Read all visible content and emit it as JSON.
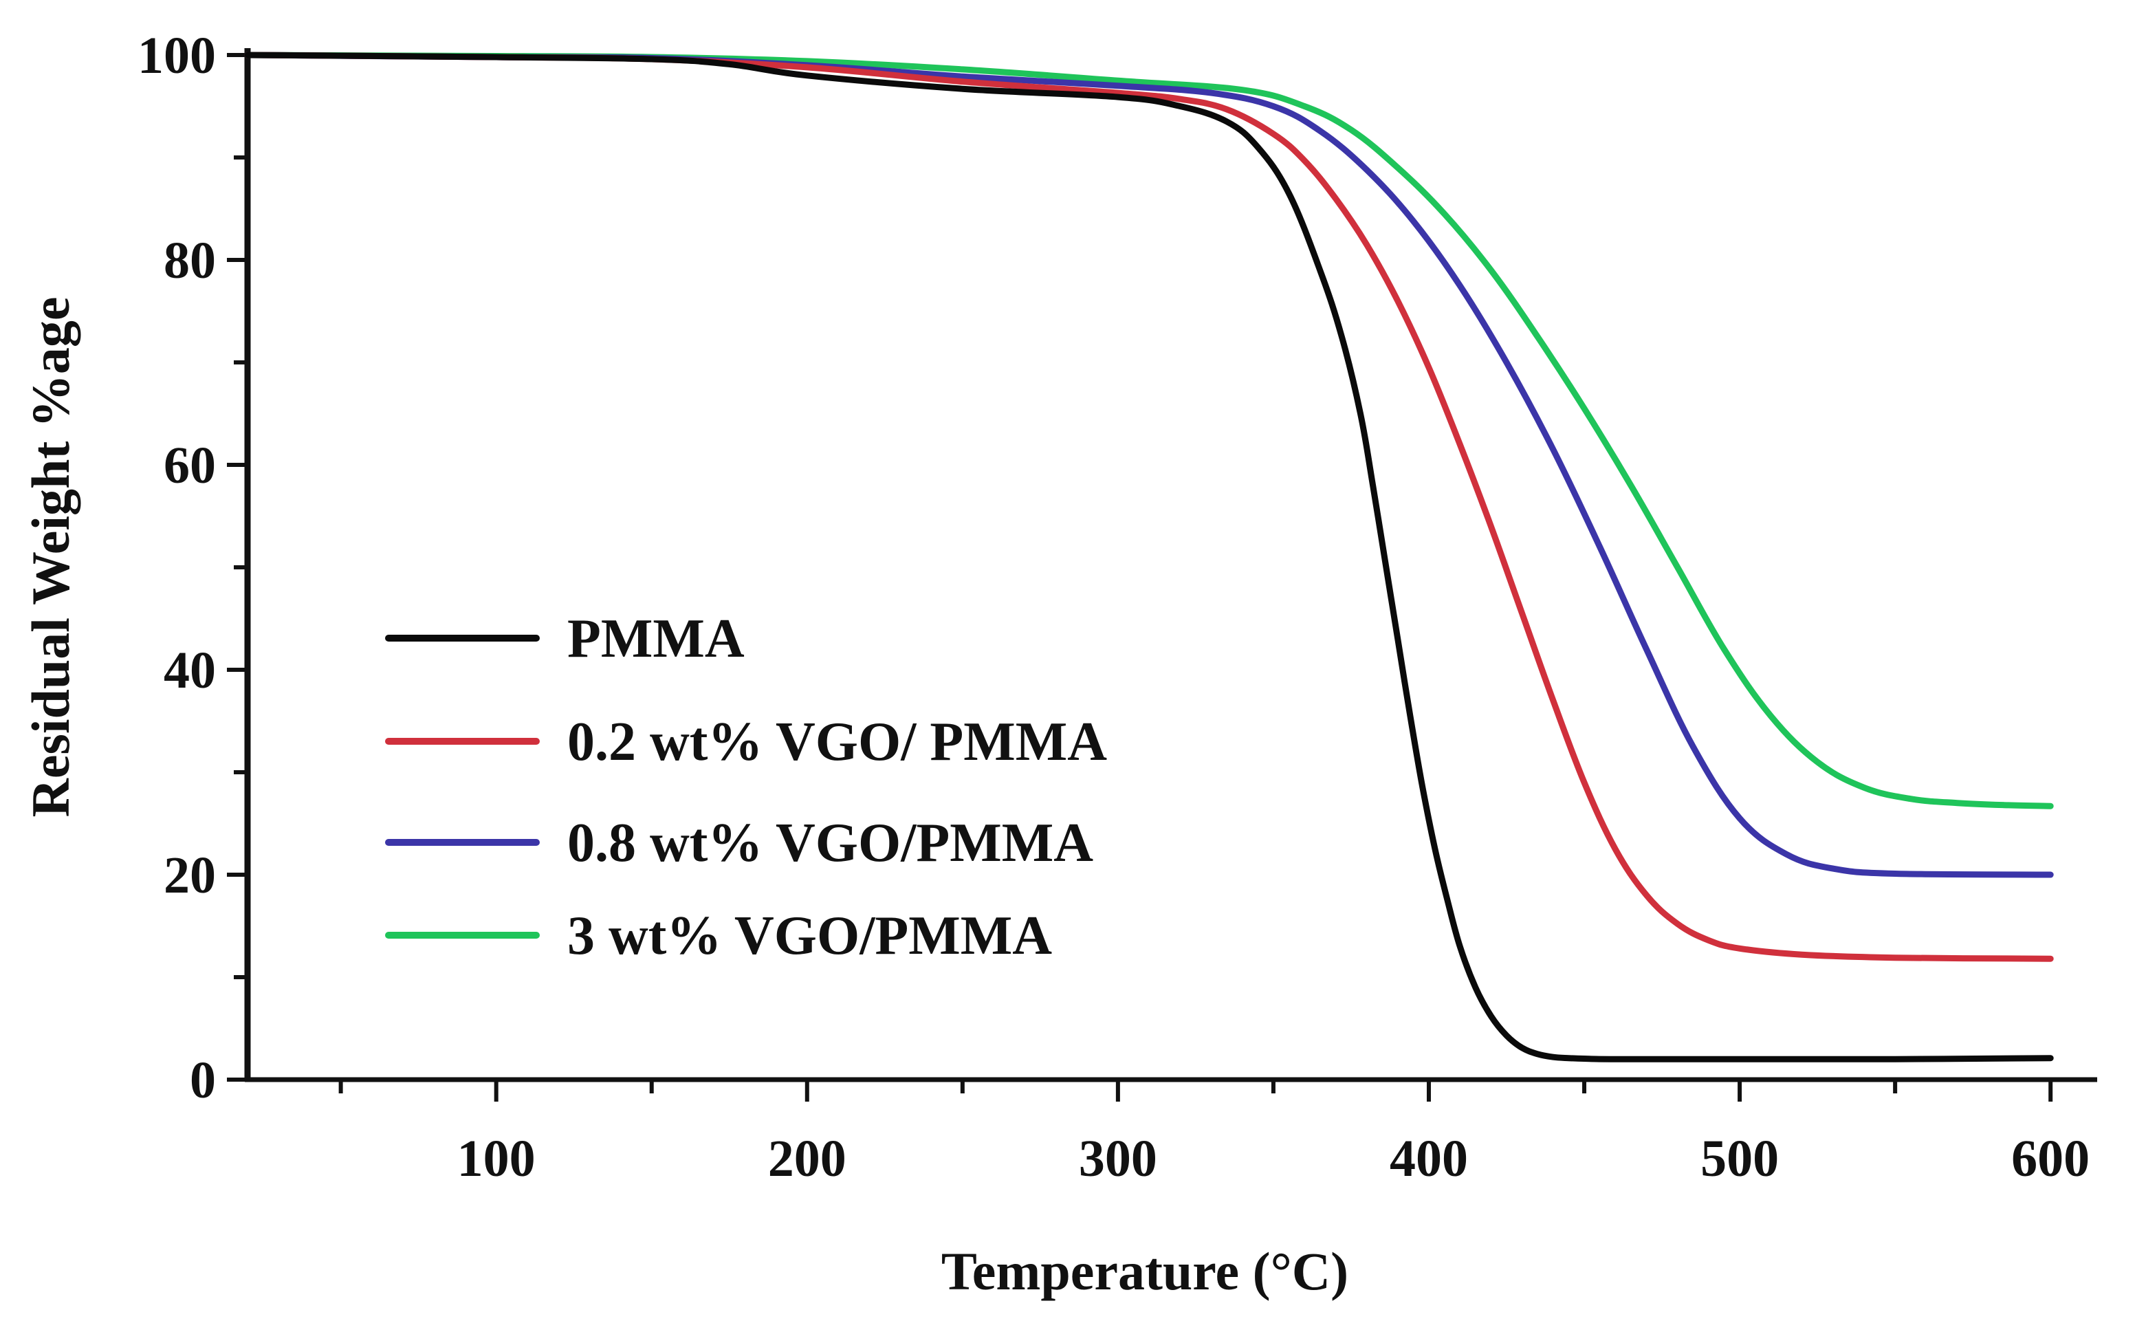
{
  "chart_data": {
    "type": "line",
    "title": "",
    "xlabel": "Temperature (°C)",
    "ylabel": "Residual Weight %age",
    "xlim": [
      20,
      615
    ],
    "ylim": [
      0,
      100
    ],
    "x_ticks": [
      100,
      200,
      300,
      400,
      500,
      600
    ],
    "x_tick_labels": [
      "100",
      "200",
      "300",
      "400",
      "500",
      "600"
    ],
    "y_ticks": [
      0,
      20,
      40,
      60,
      80,
      100
    ],
    "y_tick_labels": [
      "0",
      "20",
      "40",
      "60",
      "80",
      "100"
    ],
    "grid": false,
    "legend_position": "lower-left",
    "series": [
      {
        "name": "PMMA",
        "color": "#0a0a0a",
        "x": [
          20,
          100,
          150,
          175,
          200,
          250,
          300,
          320,
          335,
          345,
          355,
          365,
          372,
          378,
          382,
          386,
          390,
          394,
          398,
          402,
          406,
          410,
          415,
          420,
          425,
          430,
          435,
          440,
          445,
          450,
          460,
          500,
          550,
          600
        ],
        "y": [
          100,
          99.8,
          99.6,
          99.1,
          98.0,
          96.7,
          95.9,
          95.0,
          93.5,
          91.0,
          86.5,
          79.0,
          72.5,
          65.0,
          58.0,
          50.5,
          43.0,
          35.5,
          28.5,
          22.5,
          17.5,
          13.0,
          9.0,
          6.2,
          4.3,
          3.1,
          2.5,
          2.2,
          2.1,
          2.05,
          2.0,
          2.0,
          2.0,
          2.1
        ]
      },
      {
        "name": "0.2 wt% VGO/ PMMA",
        "color": "#d0303c",
        "x": [
          20,
          100,
          150,
          200,
          250,
          300,
          320,
          335,
          350,
          360,
          370,
          380,
          390,
          400,
          410,
          420,
          430,
          440,
          450,
          460,
          470,
          480,
          490,
          500,
          520,
          550,
          600
        ],
        "y": [
          100,
          99.8,
          99.6,
          98.8,
          97.4,
          96.3,
          95.7,
          94.7,
          92.3,
          89.7,
          86.0,
          81.5,
          76.0,
          69.5,
          62.0,
          54.0,
          45.5,
          37.0,
          29.0,
          22.5,
          18.0,
          15.2,
          13.6,
          12.8,
          12.2,
          11.9,
          11.8
        ]
      },
      {
        "name": "0.8 wt% VGO/PMMA",
        "color": "#3b35a8",
        "x": [
          20,
          100,
          150,
          200,
          250,
          300,
          330,
          350,
          365,
          380,
          395,
          410,
          425,
          440,
          455,
          470,
          485,
          500,
          515,
          530,
          550,
          600
        ],
        "y": [
          100,
          99.8,
          99.7,
          99.0,
          97.9,
          97.0,
          96.3,
          95.0,
          92.6,
          88.8,
          83.8,
          77.5,
          70.0,
          61.5,
          52.0,
          42.0,
          32.5,
          25.5,
          22.0,
          20.6,
          20.1,
          20.0
        ]
      },
      {
        "name": "3 wt% VGO/PMMA",
        "color": "#1fc45a",
        "x": [
          20,
          100,
          150,
          200,
          250,
          300,
          340,
          360,
          375,
          390,
          405,
          420,
          435,
          450,
          465,
          480,
          495,
          510,
          525,
          540,
          555,
          570,
          585,
          600
        ],
        "y": [
          100,
          99.9,
          99.8,
          99.4,
          98.6,
          97.5,
          96.6,
          95.0,
          92.7,
          89.0,
          84.5,
          79.0,
          72.5,
          65.5,
          58.0,
          50.0,
          42.0,
          35.5,
          31.0,
          28.5,
          27.4,
          27.0,
          26.8,
          26.7
        ]
      }
    ]
  }
}
